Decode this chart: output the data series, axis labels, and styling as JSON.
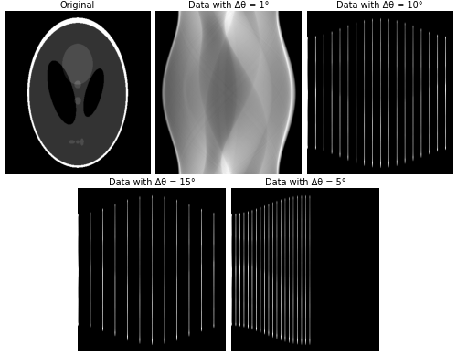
{
  "title_original": "Original",
  "title_1deg": "Data with Δθ = 1°",
  "title_10deg": "Data with Δθ = 10°",
  "title_15deg": "Data with Δθ = 15°",
  "title_5deg": "Data with Δθ = 5°",
  "title_fontsize": 7,
  "fig_bg": "#ffffff",
  "panel_bg": "#000000"
}
